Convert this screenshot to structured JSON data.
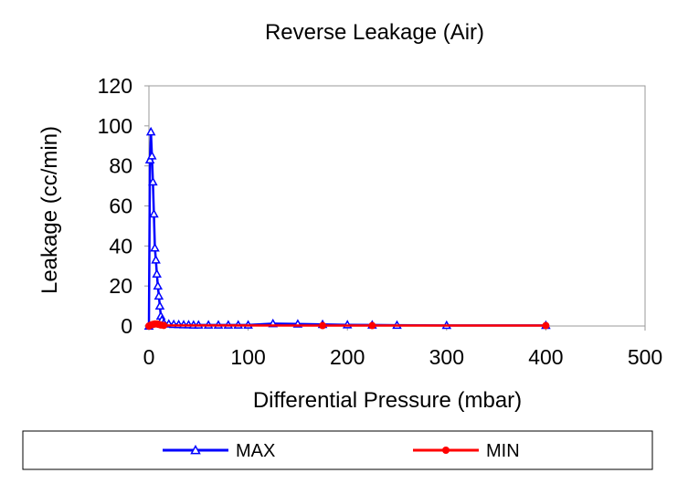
{
  "chart_data": {
    "type": "line",
    "title": "Reverse Leakage (Air)",
    "xlabel": "Differential Pressure (mbar)",
    "ylabel": "Leakage (cc/min)",
    "xlim": [
      0,
      500
    ],
    "ylim": [
      0,
      120
    ],
    "xticks": [
      0,
      100,
      200,
      300,
      400,
      500
    ],
    "yticks": [
      0,
      20,
      40,
      60,
      80,
      100,
      120
    ],
    "grid": false,
    "legend_position": "bottom",
    "series": [
      {
        "name": "MAX",
        "color": "#0000ff",
        "marker": "triangle",
        "x": [
          0,
          1,
          2,
          3,
          4,
          5,
          6,
          7,
          8,
          9,
          10,
          11,
          12,
          13,
          15,
          20,
          25,
          30,
          35,
          40,
          45,
          50,
          60,
          70,
          80,
          90,
          100,
          125,
          150,
          175,
          200,
          225,
          250,
          300,
          400
        ],
        "y": [
          0,
          83,
          97,
          85,
          72,
          56,
          39,
          33,
          26,
          20,
          15,
          10,
          5,
          3,
          1.5,
          1,
          0.8,
          0.7,
          0.6,
          0.6,
          0.5,
          0.5,
          0.5,
          0.5,
          0.5,
          0.5,
          0.5,
          1.2,
          1,
          0.8,
          0.6,
          0.5,
          0.4,
          0.3,
          0.3
        ]
      },
      {
        "name": "MIN",
        "color": "#ff0000",
        "marker": "circle",
        "x": [
          0,
          2,
          4,
          6,
          8,
          10,
          12,
          15,
          175,
          225,
          400
        ],
        "y": [
          0,
          0.5,
          0.8,
          1,
          1,
          0.8,
          0.5,
          0.3,
          0.2,
          0.2,
          0.2
        ]
      }
    ]
  }
}
